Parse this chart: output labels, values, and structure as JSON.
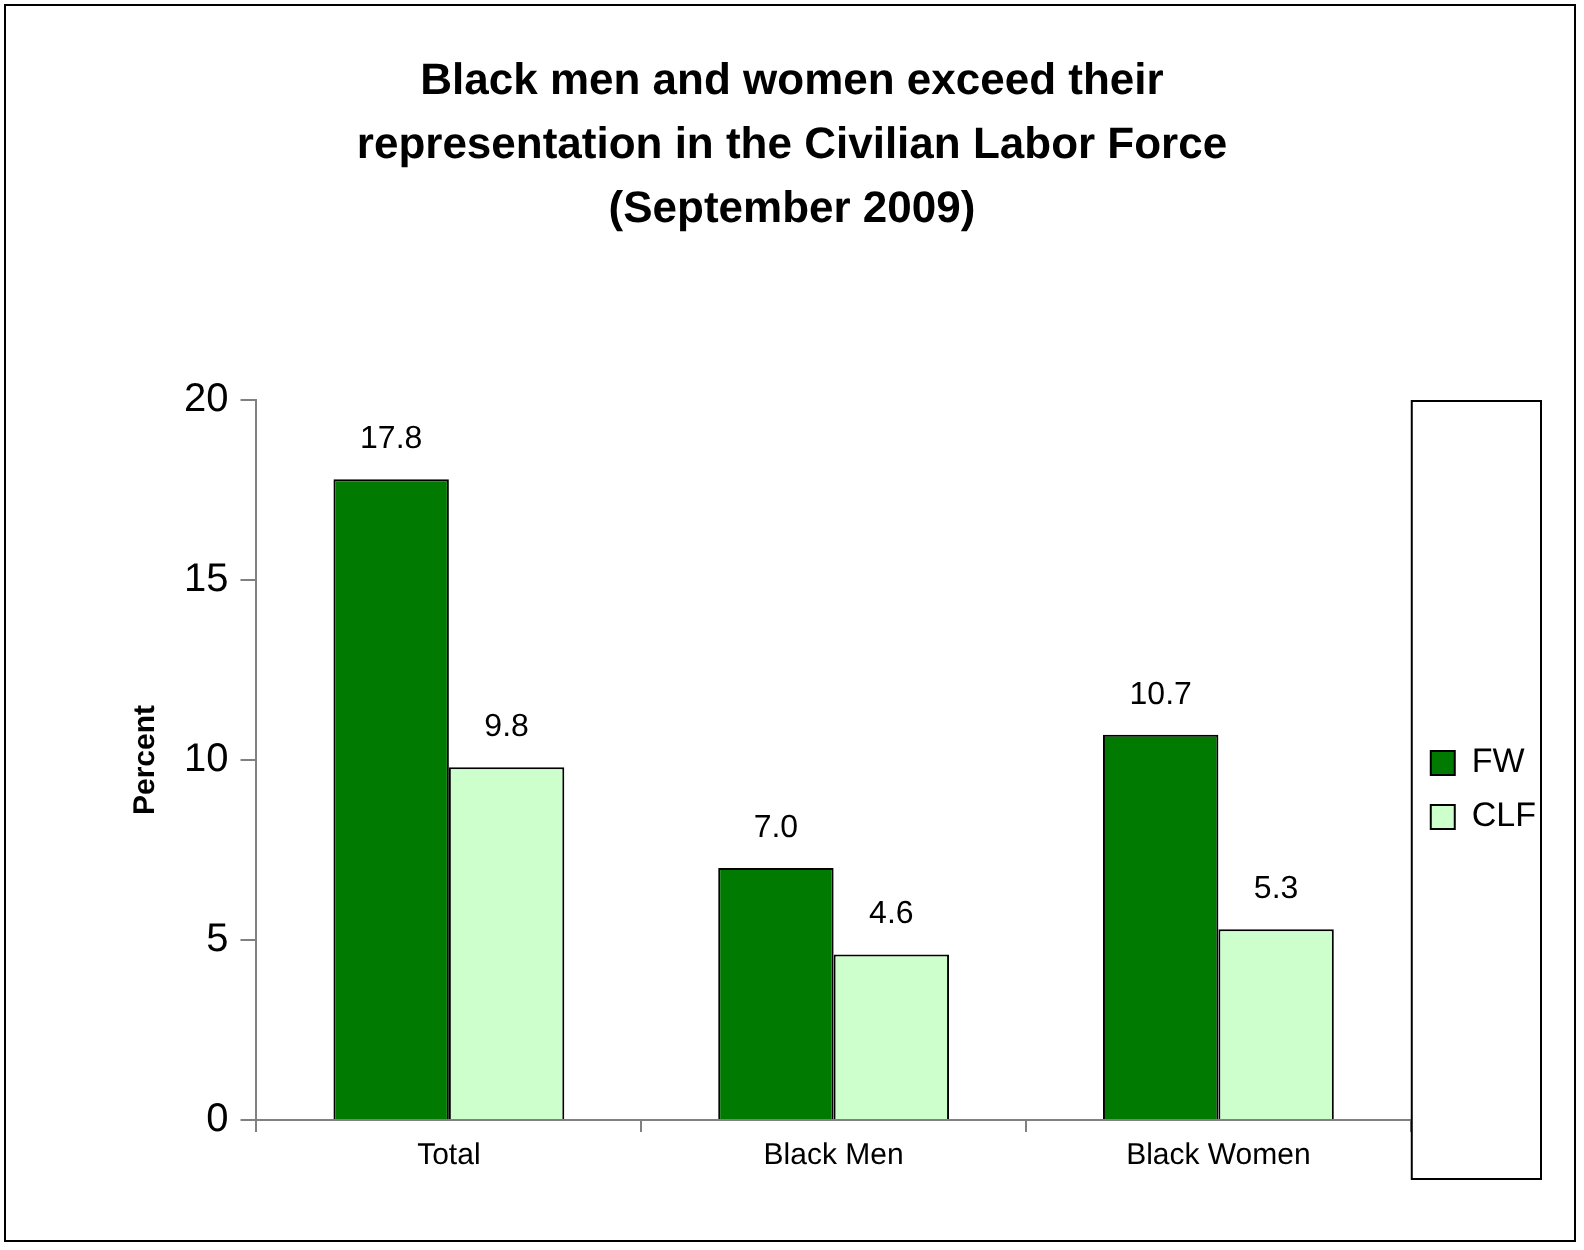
{
  "chart_data": {
    "type": "bar",
    "title": "Black men and women exceed their representation in the Civilian Labor Force (September 2009)",
    "ylabel": "Percent",
    "categories": [
      "Total",
      "Black Men",
      "Black Women"
    ],
    "series": [
      {
        "name": "FW",
        "color": "#007a00",
        "values": [
          17.8,
          7.0,
          10.7
        ],
        "value_labels": [
          "17.8",
          "7.0",
          "10.7"
        ]
      },
      {
        "name": "CLF",
        "color": "#ccffcc",
        "values": [
          9.8,
          4.6,
          5.3
        ],
        "value_labels": [
          "9.8",
          "4.6",
          "5.3"
        ]
      }
    ],
    "ylim": [
      0,
      20
    ],
    "yticks": [
      0,
      5,
      10,
      15,
      20
    ],
    "legend": "right"
  }
}
